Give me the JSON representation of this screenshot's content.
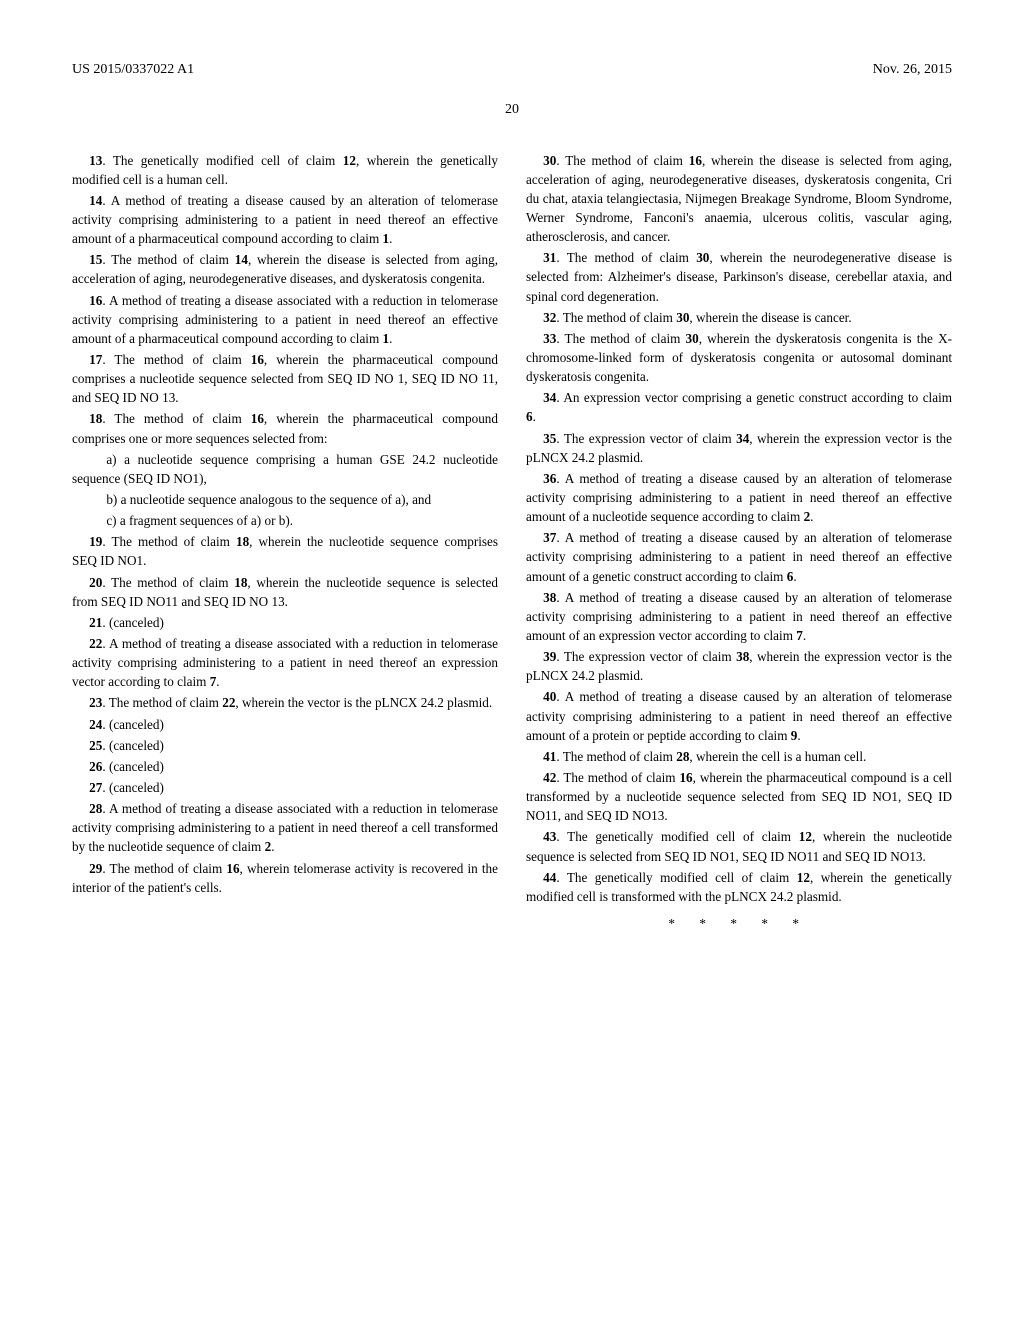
{
  "header": {
    "left": "US 2015/0337022 A1",
    "right": "Nov. 26, 2015"
  },
  "pagenum": "20",
  "claims": {
    "c13": "13. The genetically modified cell of claim 12, wherein the genetically modified cell is a human cell.",
    "c14": "14. A method of treating a disease caused by an alteration of telomerase activity comprising administering to a patient in need thereof an effective amount of a pharmaceutical compound according to claim 1.",
    "c15": "15. The method of claim 14, wherein the disease is selected from aging, acceleration of aging, neurodegenerative diseases, and dyskeratosis congenita.",
    "c16": "16. A method of treating a disease associated with a reduction in telomerase activity comprising administering to a patient in need thereof an effective amount of a pharmaceutical compound according to claim 1.",
    "c17": "17. The method of claim 16, wherein the pharmaceutical compound comprises a nucleotide sequence selected from SEQ ID NO 1, SEQ ID NO 11, and SEQ ID NO 13.",
    "c18": "18. The method of claim 16, wherein the pharmaceutical compound comprises one or more sequences selected from:",
    "c18a": "a) a nucleotide sequence comprising a human GSE 24.2 nucleotide sequence (SEQ ID NO1),",
    "c18b": "b) a nucleotide sequence analogous to the sequence of a), and",
    "c18c": "c) a fragment sequences of a) or b).",
    "c19": "19. The method of claim 18, wherein the nucleotide sequence comprises SEQ ID NO1.",
    "c20": "20. The method of claim 18, wherein the nucleotide sequence is selected from SEQ ID NO11 and SEQ ID NO 13.",
    "c21": "21. (canceled)",
    "c22": "22. A method of treating a disease associated with a reduction in telomerase activity comprising administering to a patient in need thereof an expression vector according to claim 7.",
    "c23": "23. The method of claim 22, wherein the vector is the pLNCX 24.2 plasmid.",
    "c24": "24. (canceled)",
    "c25": "25. (canceled)",
    "c26": "26. (canceled)",
    "c27": "27. (canceled)",
    "c28": "28. A method of treating a disease associated with a reduction in telomerase activity comprising administering to a patient in need thereof a cell transformed by the nucleotide sequence of claim 2.",
    "c29": "29. The method of claim 16, wherein telomerase activity is recovered in the interior of the patient's cells.",
    "c30": "30. The method of claim 16, wherein the disease is selected from aging, acceleration of aging, neurodegenerative diseases, dyskeratosis congenita, Cri du chat, ataxia telangiectasia, Nijmegen Breakage Syndrome, Bloom Syndrome, Werner Syndrome, Fanconi's anaemia, ulcerous colitis, vascular aging, atherosclerosis, and cancer.",
    "c31": "31. The method of claim 30, wherein the neurodegenerative disease is selected from: Alzheimer's disease, Parkinson's disease, cerebellar ataxia, and spinal cord degeneration.",
    "c32": "32. The method of claim 30, wherein the disease is cancer.",
    "c33": "33. The method of claim 30, wherein the dyskeratosis congenita is the X-chromosome-linked form of dyskeratosis congenita or autosomal dominant dyskeratosis congenita.",
    "c34": "34. An expression vector comprising a genetic construct according to claim 6.",
    "c35": "35. The expression vector of claim 34, wherein the expression vector is the pLNCX 24.2 plasmid.",
    "c36": "36. A method of treating a disease caused by an alteration of telomerase activity comprising administering to a patient in need thereof an effective amount of a nucleotide sequence according to claim 2.",
    "c37": "37. A method of treating a disease caused by an alteration of telomerase activity comprising administering to a patient in need thereof an effective amount of a genetic construct according to claim 6.",
    "c38": "38. A method of treating a disease caused by an alteration of telomerase activity comprising administering to a patient in need thereof an effective amount of an expression vector according to claim 7.",
    "c39": "39. The expression vector of claim 38, wherein the expression vector is the pLNCX 24.2 plasmid.",
    "c40": "40. A method of treating a disease caused by an alteration of telomerase activity comprising administering to a patient in need thereof an effective amount of a protein or peptide according to claim 9.",
    "c41": "41. The method of claim 28, wherein the cell is a human cell.",
    "c42": "42. The method of claim 16, wherein the pharmaceutical compound is a cell transformed by a nucleotide sequence selected from SEQ ID NO1, SEQ ID NO11, and SEQ ID NO13.",
    "c43": "43. The genetically modified cell of claim 12, wherein the nucleotide sequence is selected from SEQ ID NO1, SEQ ID NO11 and SEQ ID NO13.",
    "c44": "44. The genetically modified cell of claim 12, wherein the genetically modified cell is transformed with the pLNCX 24.2 plasmid."
  },
  "endmark": "* * * * *"
}
